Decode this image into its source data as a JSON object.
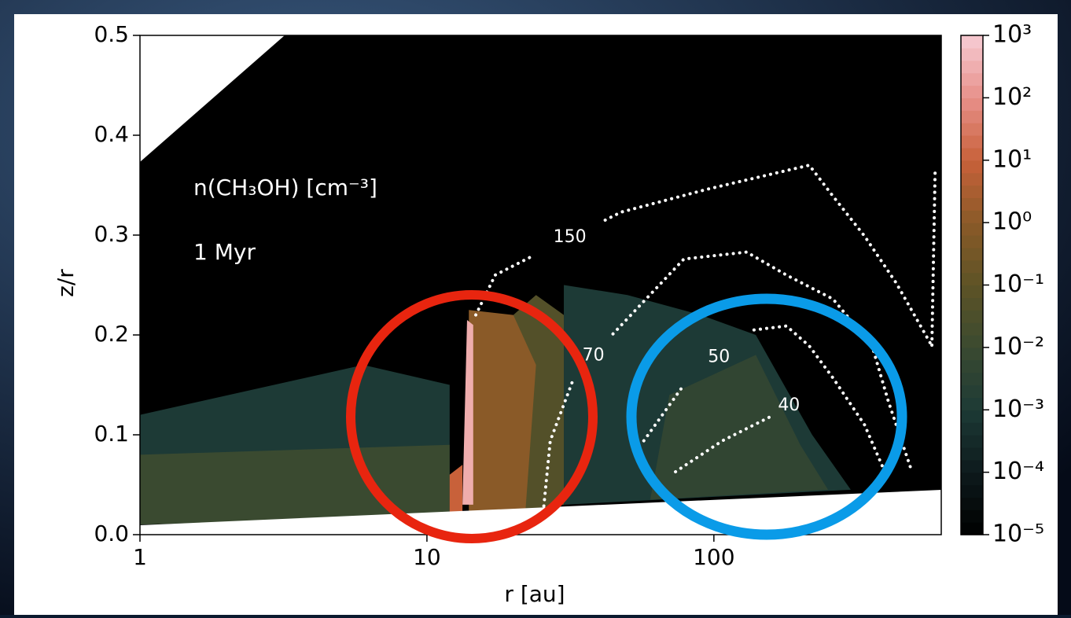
{
  "chart_data": {
    "type": "contourmap",
    "xlabel": "r [au]",
    "ylabel": "z/r",
    "xscale": "log",
    "xlim": [
      1,
      620
    ],
    "ylim": [
      0,
      0.5
    ],
    "xticks": [
      1,
      10,
      100
    ],
    "yticks": [
      {
        "value": 0,
        "label": "0.0"
      },
      0.1,
      0.2,
      0.3,
      0.4,
      0.5
    ],
    "annotations": [
      "n(CH₃OH) [cm⁻³]",
      "1 Myr"
    ],
    "colormap": [
      "#000000",
      "#0d1a1c",
      "#1d3a36",
      "#3a4a30",
      "#5e5326",
      "#8a5a28",
      "#c8613a",
      "#e8908a",
      "#f6ccd4"
    ],
    "clim": [
      1e-05,
      1000
    ],
    "cticks": [
      {
        "value": 1000,
        "label": "10³"
      },
      {
        "value": 100,
        "label": "10²"
      },
      {
        "value": 10,
        "label": "10¹"
      },
      {
        "value": 1,
        "label": "10⁰"
      },
      {
        "value": 0.1,
        "label": "10⁻¹"
      },
      {
        "value": 0.01,
        "label": "10⁻²"
      },
      {
        "value": 0.001,
        "label": "10⁻³"
      },
      {
        "value": 0.0001,
        "label": "10⁻⁴"
      },
      {
        "value": 1e-05,
        "label": "10⁻⁵"
      }
    ],
    "regions": [
      {
        "value": 0.001,
        "x": [
          1,
          12,
          12,
          6,
          1
        ],
        "y": [
          0.01,
          0.02,
          0.15,
          0.17,
          0.12
        ]
      },
      {
        "value": 0.01,
        "x": [
          1,
          12,
          12,
          1
        ],
        "y": [
          0.01,
          0.02,
          0.09,
          0.08
        ]
      },
      {
        "value": 0.001,
        "x": [
          30,
          300,
          220,
          140,
          90,
          50,
          30
        ],
        "y": [
          0.03,
          0.045,
          0.1,
          0.2,
          0.22,
          0.24,
          0.25
        ]
      },
      {
        "value": 0.005,
        "x": [
          60,
          250,
          200,
          140,
          70
        ],
        "y": [
          0.035,
          0.045,
          0.09,
          0.18,
          0.14
        ]
      },
      {
        "value": 0.05,
        "x": [
          20,
          30,
          30,
          24,
          20
        ],
        "y": [
          0.02,
          0.03,
          0.22,
          0.24,
          0.22
        ]
      },
      {
        "value": 1,
        "x": [
          14,
          22,
          24,
          20,
          14
        ],
        "y": [
          0.02,
          0.02,
          0.17,
          0.22,
          0.225
        ]
      },
      {
        "value": 10,
        "x": [
          12,
          13.3,
          13.3,
          12
        ],
        "y": [
          0.02,
          0.02,
          0.07,
          0.06
        ]
      },
      {
        "value": 300,
        "x": [
          13.3,
          14.5,
          14.5,
          13.8
        ],
        "y": [
          0.03,
          0.03,
          0.21,
          0.215
        ]
      }
    ],
    "contours": [
      {
        "level": 150,
        "x": [
          14.8,
          17.3,
          23.7,
          null,
          41.8,
          47.5,
          95,
          215,
          260,
          335,
          432,
          575,
          null,
          590,
          575
        ],
        "y": [
          0.22,
          0.26,
          0.28,
          null,
          0.315,
          0.323,
          0.346,
          0.37,
          0.339,
          0.299,
          0.252,
          0.189,
          null,
          0.362,
          0.189
        ]
      },
      {
        "level": 70,
        "x": [
          25.3,
          26.9,
          32.5,
          null,
          44.5,
          78.6,
          130,
          179,
          260,
          356,
          405,
          490
        ],
        "y": [
          0.016,
          0.094,
          0.157,
          null,
          0.201,
          0.276,
          0.283,
          0.26,
          0.236,
          0.189,
          0.134,
          0.063
        ]
      },
      {
        "level": 50,
        "x": [
          57,
          78.6,
          null,
          138,
          179,
          215,
          260,
          335,
          394
        ],
        "y": [
          0.094,
          0.15,
          null,
          0.205,
          0.209,
          0.189,
          0.157,
          0.11,
          0.063
        ]
      },
      {
        "level": 40,
        "x": [
          73.5,
          107,
          157
        ],
        "y": [
          0.063,
          0.094,
          0.118
        ]
      }
    ]
  }
}
